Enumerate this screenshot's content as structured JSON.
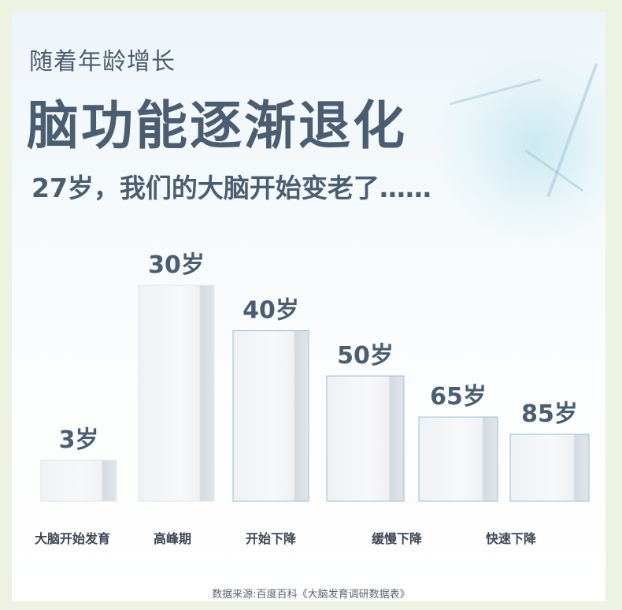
{
  "header": {
    "subtitle": "随着年龄增长",
    "title": "脑功能逐渐退化",
    "tagline": "27岁，我们的大脑开始变老了……"
  },
  "chart_data": {
    "type": "bar",
    "categories": [
      "3岁",
      "30岁",
      "40岁",
      "50岁",
      "65岁",
      "85岁"
    ],
    "values": [
      19,
      100,
      79,
      58,
      39,
      31
    ],
    "value_meaning": "relative brain function level (illustrative bar height, % of peak)",
    "stage_labels": [
      "大脑开始发育",
      "高峰期",
      "开始下降",
      "缓慢下降",
      "快速下降"
    ],
    "title": "",
    "xlabel": "",
    "ylabel": "",
    "ylim": [
      0,
      100
    ],
    "grid": false,
    "legend": "none",
    "colors": {
      "bar": "#f4f6f8",
      "bar_side": "#c9d4dc",
      "bar_edge": "#a9c8dc",
      "text": "#4b5d70"
    }
  },
  "footer": {
    "source": "数据来源:百度百科《大脑发育调研数据表》"
  }
}
